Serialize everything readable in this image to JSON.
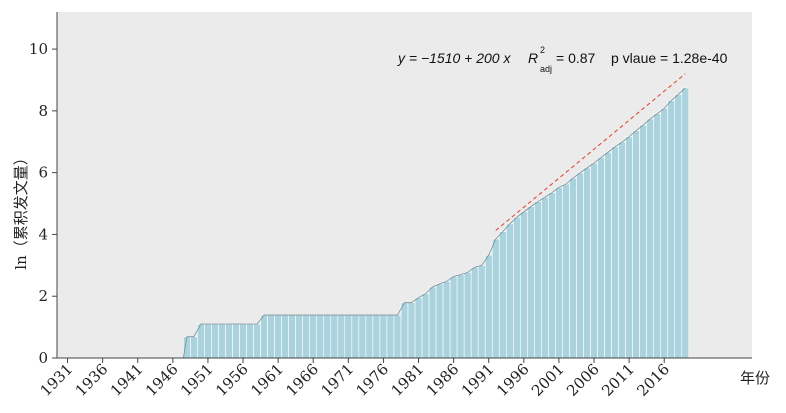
{
  "chart_data": {
    "type": "bar",
    "xlabel": "年份",
    "ylabel": "ln（累积发文量）",
    "ylim": [
      0,
      11.2
    ],
    "y_ticks": [
      0,
      2,
      4,
      6,
      8,
      10
    ],
    "x_tick_labels": [
      "1931",
      "1936",
      "1941",
      "1946",
      "1951",
      "1956",
      "1961",
      "1966",
      "1971",
      "1976",
      "1981",
      "1986",
      "1991",
      "1996",
      "2001",
      "2006",
      "2011",
      "2016"
    ],
    "grid": false,
    "background": "#ebebeb",
    "bar_color": "#aad3de",
    "bar_edge": "#ffffff",
    "area_outline": "#7a8f96",
    "fit_line_color": "#e0412c",
    "series": [
      {
        "years": [
          1948,
          1949,
          1950,
          1951,
          1952,
          1953,
          1954,
          1955,
          1956,
          1957,
          1958,
          1959,
          1960,
          1961,
          1962,
          1963,
          1964,
          1965,
          1966,
          1967,
          1968,
          1969,
          1970,
          1971,
          1972,
          1973,
          1974,
          1975,
          1976,
          1977,
          1978,
          1979,
          1980,
          1981,
          1982,
          1983,
          1984,
          1985,
          1986,
          1987,
          1988,
          1989,
          1990,
          1991,
          1992,
          1993,
          1994,
          1995,
          1996,
          1997,
          1998,
          1999,
          2000,
          2001,
          2002,
          2003,
          2004,
          2005,
          2006,
          2007,
          2008,
          2009,
          2010,
          2011,
          2012,
          2013,
          2014,
          2015,
          2016,
          2017,
          2018,
          2019
        ],
        "values": [
          0.69,
          0.69,
          1.1,
          1.1,
          1.1,
          1.1,
          1.1,
          1.1,
          1.1,
          1.1,
          1.1,
          1.39,
          1.39,
          1.39,
          1.39,
          1.39,
          1.39,
          1.39,
          1.39,
          1.39,
          1.39,
          1.39,
          1.39,
          1.39,
          1.39,
          1.39,
          1.39,
          1.39,
          1.39,
          1.39,
          1.39,
          1.79,
          1.79,
          1.95,
          2.08,
          2.3,
          2.4,
          2.48,
          2.64,
          2.7,
          2.77,
          2.94,
          3.0,
          3.33,
          3.85,
          4.09,
          4.34,
          4.56,
          4.73,
          4.9,
          5.06,
          5.2,
          5.35,
          5.52,
          5.63,
          5.82,
          5.99,
          6.15,
          6.31,
          6.49,
          6.66,
          6.84,
          6.99,
          7.16,
          7.36,
          7.54,
          7.74,
          7.91,
          8.08,
          8.33,
          8.53,
          8.74
        ]
      }
    ],
    "fit_line": {
      "x_range": [
        1992,
        2019
      ],
      "y_range": [
        4.13,
        9.2
      ]
    },
    "annotation": {
      "equation": "y = −1510 + 200 x",
      "r_main": "R",
      "r_sup": "2",
      "r_sub": "adj",
      "r_value": " = 0.87",
      "p_text": "p vlaue = 1.28e-40"
    }
  }
}
